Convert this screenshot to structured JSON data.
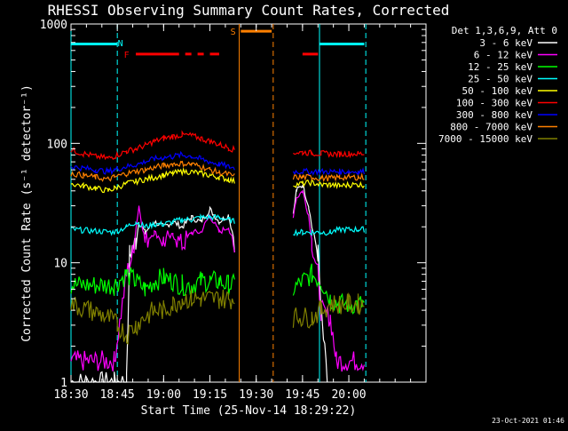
{
  "chart_data": {
    "type": "line",
    "title": "RHESSI Observing Summary Count Rates, Corrected",
    "xlabel": "Start Time (25-Nov-14 18:29:22)",
    "ylabel": "Corrected Count Rate (s⁻¹ detector⁻¹)",
    "ylog": true,
    "ylim": [
      1,
      1000
    ],
    "xlim_min": [
      0,
      115
    ],
    "x_start": "18:30",
    "x_ticks": [
      {
        "min": 0,
        "label": "18:30"
      },
      {
        "min": 15,
        "label": "18:45"
      },
      {
        "min": 30,
        "label": "19:00"
      },
      {
        "min": 45,
        "label": "19:15"
      },
      {
        "min": 60,
        "label": "19:30"
      },
      {
        "min": 75,
        "label": "19:45"
      },
      {
        "min": 90,
        "label": "20:00"
      }
    ],
    "y_ticks": [
      {
        "v": 1,
        "label": "1"
      },
      {
        "v": 10,
        "label": "10"
      },
      {
        "v": 100,
        "label": "100"
      },
      {
        "v": 1000,
        "label": "1000"
      }
    ],
    "legend_header": "Det 1,3,6,9, Att 0",
    "legend_position": "right",
    "series": [
      {
        "name": "3 - 6 keV",
        "color": "#ffffff",
        "segments": [
          [
            [
              0,
              1
            ],
            [
              14,
              1
            ],
            [
              18,
              1
            ],
            [
              19,
              12
            ],
            [
              21,
              15
            ],
            [
              22,
              22
            ],
            [
              24,
              18
            ],
            [
              27,
              22
            ],
            [
              30,
              20
            ],
            [
              33,
              22
            ],
            [
              36,
              20
            ],
            [
              39,
              24
            ],
            [
              42,
              22
            ],
            [
              45,
              28
            ],
            [
              48,
              22
            ],
            [
              51,
              25
            ],
            [
              53,
              15
            ]
          ],
          [
            [
              72,
              25
            ],
            [
              73,
              40
            ],
            [
              75,
              45
            ],
            [
              77,
              30
            ],
            [
              78,
              20
            ],
            [
              80,
              12
            ],
            [
              81,
              4
            ],
            [
              83,
              1
            ]
          ]
        ]
      },
      {
        "name": "6 - 12 keV",
        "color": "#ff00ff",
        "segments": [
          [
            [
              0,
              1.5
            ],
            [
              14,
              1.5
            ],
            [
              18,
              8
            ],
            [
              20,
              12
            ],
            [
              22,
              30
            ],
            [
              24,
              15
            ],
            [
              27,
              18
            ],
            [
              30,
              15
            ],
            [
              33,
              17
            ],
            [
              36,
              14
            ],
            [
              39,
              18
            ],
            [
              42,
              18
            ],
            [
              45,
              25
            ],
            [
              48,
              18
            ],
            [
              51,
              20
            ],
            [
              53,
              12
            ]
          ],
          [
            [
              72,
              25
            ],
            [
              73,
              35
            ],
            [
              75,
              40
            ],
            [
              77,
              25
            ],
            [
              78,
              15
            ],
            [
              80,
              8
            ],
            [
              81,
              4
            ],
            [
              84,
              3.5
            ],
            [
              86,
              1.5
            ],
            [
              95,
              1.5
            ]
          ]
        ]
      },
      {
        "name": "12 - 25 keV",
        "color": "#00ff00",
        "segments": [
          [
            [
              0,
              6.5
            ],
            [
              14,
              6.5
            ],
            [
              18,
              8
            ],
            [
              21,
              7
            ],
            [
              24,
              6
            ],
            [
              27,
              7
            ],
            [
              30,
              7.5
            ],
            [
              33,
              7
            ],
            [
              36,
              6.5
            ],
            [
              39,
              6.5
            ],
            [
              42,
              7
            ],
            [
              45,
              7
            ],
            [
              48,
              7
            ],
            [
              51,
              6.5
            ],
            [
              53,
              6.5
            ]
          ],
          [
            [
              72,
              6
            ],
            [
              75,
              7
            ],
            [
              78,
              8
            ],
            [
              81,
              7
            ],
            [
              84,
              5
            ],
            [
              87,
              4.5
            ],
            [
              90,
              4.5
            ],
            [
              93,
              4.5
            ],
            [
              95,
              4.5
            ]
          ]
        ]
      },
      {
        "name": "25 - 50 keV",
        "color": "#00ffff",
        "segments": [
          [
            [
              0,
              19
            ],
            [
              14,
              18
            ],
            [
              18,
              20
            ],
            [
              21,
              22
            ],
            [
              24,
              20
            ],
            [
              27,
              21
            ],
            [
              30,
              21
            ],
            [
              33,
              22
            ],
            [
              36,
              23
            ],
            [
              39,
              23
            ],
            [
              42,
              24
            ],
            [
              45,
              24
            ],
            [
              48,
              24
            ],
            [
              51,
              23
            ],
            [
              53,
              22
            ]
          ],
          [
            [
              72,
              18
            ],
            [
              75,
              18
            ],
            [
              78,
              18
            ],
            [
              81,
              18
            ],
            [
              84,
              18
            ],
            [
              87,
              19
            ],
            [
              90,
              19
            ],
            [
              93,
              19
            ],
            [
              95,
              19
            ]
          ]
        ]
      },
      {
        "name": "50 - 100 keV",
        "color": "#ffff00",
        "segments": [
          [
            [
              0,
              46
            ],
            [
              4,
              44
            ],
            [
              8,
              42
            ],
            [
              12,
              40
            ],
            [
              14,
              42
            ],
            [
              18,
              46
            ],
            [
              21,
              48
            ],
            [
              24,
              50
            ],
            [
              27,
              52
            ],
            [
              30,
              54
            ],
            [
              33,
              56
            ],
            [
              36,
              58
            ],
            [
              39,
              58
            ],
            [
              42,
              56
            ],
            [
              45,
              54
            ],
            [
              48,
              52
            ],
            [
              51,
              50
            ],
            [
              53,
              48
            ]
          ],
          [
            [
              72,
              45
            ],
            [
              75,
              46
            ],
            [
              78,
              47
            ],
            [
              81,
              45
            ],
            [
              84,
              45
            ],
            [
              87,
              44
            ],
            [
              90,
              45
            ],
            [
              93,
              45
            ],
            [
              95,
              45
            ]
          ]
        ]
      },
      {
        "name": "100 - 300 keV",
        "color": "#ff0000",
        "segments": [
          [
            [
              0,
              88
            ],
            [
              4,
              82
            ],
            [
              8,
              78
            ],
            [
              12,
              75
            ],
            [
              14,
              78
            ],
            [
              18,
              86
            ],
            [
              21,
              90
            ],
            [
              24,
              96
            ],
            [
              27,
              104
            ],
            [
              30,
              110
            ],
            [
              33,
              114
            ],
            [
              36,
              118
            ],
            [
              39,
              116
            ],
            [
              42,
              110
            ],
            [
              45,
              104
            ],
            [
              48,
              98
            ],
            [
              51,
              92
            ],
            [
              53,
              88
            ]
          ],
          [
            [
              72,
              84
            ],
            [
              75,
              84
            ],
            [
              78,
              83
            ],
            [
              81,
              82
            ],
            [
              84,
              82
            ],
            [
              87,
              81
            ],
            [
              90,
              82
            ],
            [
              93,
              82
            ],
            [
              95,
              82
            ]
          ]
        ]
      },
      {
        "name": "300 - 800 keV",
        "color": "#0000ff",
        "segments": [
          [
            [
              0,
              64
            ],
            [
              4,
              62
            ],
            [
              8,
              60
            ],
            [
              12,
              58
            ],
            [
              14,
              60
            ],
            [
              18,
              64
            ],
            [
              21,
              66
            ],
            [
              24,
              70
            ],
            [
              27,
              74
            ],
            [
              30,
              76
            ],
            [
              33,
              78
            ],
            [
              36,
              80
            ],
            [
              39,
              78
            ],
            [
              42,
              74
            ],
            [
              45,
              70
            ],
            [
              48,
              67
            ],
            [
              51,
              64
            ],
            [
              53,
              62
            ]
          ],
          [
            [
              72,
              58
            ],
            [
              75,
              58
            ],
            [
              78,
              58
            ],
            [
              81,
              58
            ],
            [
              84,
              58
            ],
            [
              87,
              58
            ],
            [
              90,
              58
            ],
            [
              93,
              58
            ],
            [
              95,
              58
            ]
          ]
        ]
      },
      {
        "name": "800 - 7000 keV",
        "color": "#ff8000",
        "segments": [
          [
            [
              0,
              56
            ],
            [
              4,
              54
            ],
            [
              8,
              52
            ],
            [
              12,
              50
            ],
            [
              14,
              52
            ],
            [
              18,
              56
            ],
            [
              21,
              58
            ],
            [
              24,
              60
            ],
            [
              27,
              63
            ],
            [
              30,
              65
            ],
            [
              33,
              67
            ],
            [
              36,
              68
            ],
            [
              39,
              67
            ],
            [
              42,
              64
            ],
            [
              45,
              60
            ],
            [
              48,
              57
            ],
            [
              51,
              55
            ],
            [
              53,
              53
            ]
          ],
          [
            [
              72,
              52
            ],
            [
              75,
              52
            ],
            [
              78,
              52
            ],
            [
              81,
              51
            ],
            [
              84,
              51
            ],
            [
              87,
              52
            ],
            [
              90,
              52
            ],
            [
              93,
              52
            ],
            [
              95,
              52
            ]
          ]
        ]
      },
      {
        "name": "7000 - 15000 keV",
        "color": "#808000",
        "segments": [
          [
            [
              0,
              4.5
            ],
            [
              6,
              4
            ],
            [
              12,
              3.5
            ],
            [
              15,
              3
            ],
            [
              18,
              2.5
            ],
            [
              21,
              3
            ],
            [
              24,
              3.5
            ],
            [
              27,
              4
            ],
            [
              30,
              4
            ],
            [
              33,
              4.5
            ],
            [
              36,
              5
            ],
            [
              39,
              5
            ],
            [
              42,
              5
            ],
            [
              45,
              5
            ],
            [
              48,
              5
            ],
            [
              51,
              5
            ],
            [
              53,
              5
            ]
          ],
          [
            [
              72,
              3.5
            ],
            [
              75,
              3.5
            ],
            [
              78,
              3.5
            ],
            [
              81,
              4
            ],
            [
              84,
              4.5
            ],
            [
              87,
              4.5
            ],
            [
              90,
              4.5
            ],
            [
              93,
              4.5
            ],
            [
              95,
              4.5
            ]
          ]
        ]
      }
    ],
    "state_flags": [
      {
        "label": "N",
        "color": "#00ffff",
        "level": 700
      },
      {
        "label": "F",
        "color": "#ff0000",
        "level": 560
      },
      {
        "label": "S",
        "color": "#ff8000",
        "level": 870
      }
    ],
    "flag_bars": [
      {
        "color": "#00ffff",
        "level": 680,
        "spans": [
          [
            0,
            15
          ],
          [
            80.5,
            95
          ]
        ]
      },
      {
        "color": "#ff0000",
        "level": 560,
        "spans": [
          [
            21,
            35
          ],
          [
            37,
            39
          ],
          [
            41,
            43
          ],
          [
            45,
            48
          ],
          [
            75,
            80
          ]
        ]
      },
      {
        "color": "#ff8000",
        "level": 870,
        "spans": [
          [
            55,
            65
          ]
        ]
      }
    ],
    "vlines": [
      {
        "min": 0,
        "color": "#00ffff",
        "style": "solid"
      },
      {
        "min": 15,
        "color": "#00ffff",
        "style": "dashed"
      },
      {
        "min": 54.5,
        "color": "#ff8000",
        "style": "solid"
      },
      {
        "min": 65.5,
        "color": "#ff8000",
        "style": "dashed"
      },
      {
        "min": 80.5,
        "color": "#00ffff",
        "style": "solid"
      },
      {
        "min": 95.5,
        "color": "#00ffff",
        "style": "dashed"
      }
    ]
  },
  "footer": {
    "timestamp": "23-Oct-2021 01:46"
  }
}
